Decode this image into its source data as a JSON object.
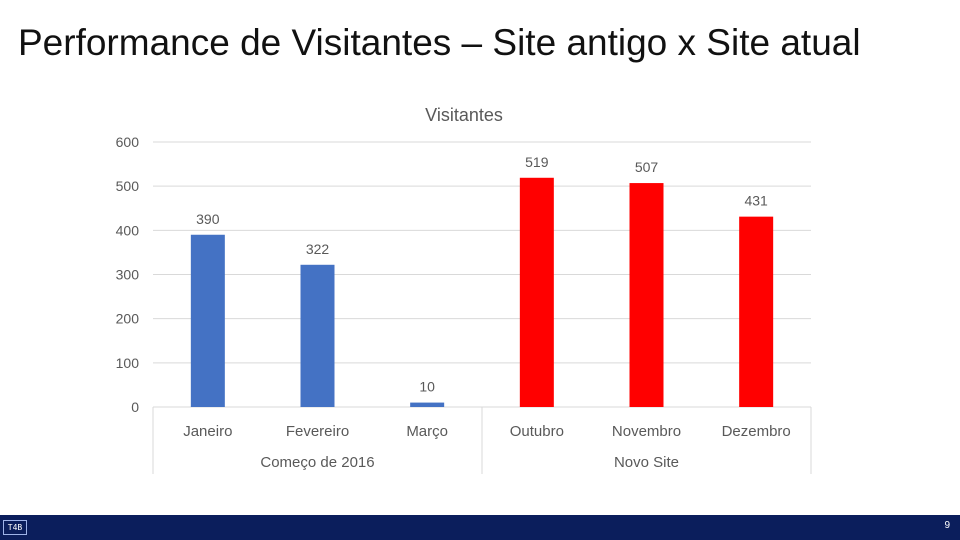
{
  "slide": {
    "title": "Performance de Visitantes – Site antigo x Site atual",
    "page_number": "9",
    "logo_text": "T4B"
  },
  "colors": {
    "site_antigo": "#4472c4",
    "site_atual": "#ff0000",
    "grid": "#d9d9d9",
    "text": "#595959",
    "footer": "#0b1e5c"
  },
  "chart_data": {
    "type": "bar",
    "title": "Visitantes",
    "categories": [
      "Janeiro",
      "Fevereiro",
      "Março",
      "Outubro",
      "Novembro",
      "Dezembro"
    ],
    "values": [
      390,
      322,
      10,
      519,
      507,
      431
    ],
    "groups": [
      {
        "label": "Começo de 2016",
        "categories": [
          "Janeiro",
          "Fevereiro",
          "Março"
        ]
      },
      {
        "label": "Novo Site",
        "categories": [
          "Outubro",
          "Novembro",
          "Dezembro"
        ]
      }
    ],
    "ylim": [
      0,
      600
    ],
    "yticks": [
      0,
      100,
      200,
      300,
      400,
      500,
      600
    ],
    "grid": true,
    "legend": "none"
  }
}
